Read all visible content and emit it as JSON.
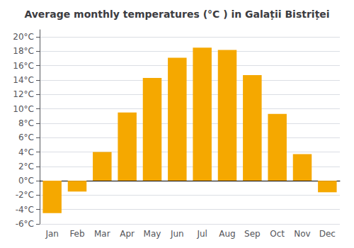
{
  "chart_data": {
    "type": "bar",
    "title": "Average monthly temperatures (°C ) in Galații Bistriței",
    "categories": [
      "Jan",
      "Feb",
      "Mar",
      "Apr",
      "May",
      "Jun",
      "Jul",
      "Aug",
      "Sep",
      "Oct",
      "Nov",
      "Dec"
    ],
    "values": [
      -4.5,
      -1.5,
      4.0,
      9.5,
      14.3,
      17.1,
      18.5,
      18.2,
      14.7,
      9.3,
      3.7,
      -1.6
    ],
    "color": "#F5A800",
    "ylim": [
      -6,
      21
    ],
    "yticks": [
      {
        "value": -6,
        "label": "-6°C"
      },
      {
        "value": -4,
        "label": "-4°C"
      },
      {
        "value": -2,
        "label": "-2°C"
      },
      {
        "value": 0,
        "label": "0°C"
      },
      {
        "value": 2,
        "label": "2°C"
      },
      {
        "value": 4,
        "label": "4°C"
      },
      {
        "value": 6,
        "label": "6°C"
      },
      {
        "value": 8,
        "label": "8°C"
      },
      {
        "value": 10,
        "label": "10°C"
      },
      {
        "value": 12,
        "label": "12°C"
      },
      {
        "value": 14,
        "label": "14°C"
      },
      {
        "value": 16,
        "label": "16°C"
      },
      {
        "value": 18,
        "label": "18°C"
      },
      {
        "value": 20,
        "label": "20°C"
      }
    ],
    "grid": true
  }
}
